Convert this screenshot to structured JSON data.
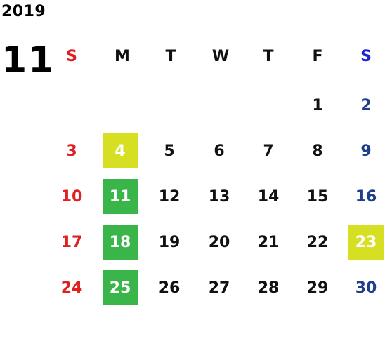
{
  "calendar": {
    "year": "2019",
    "month": "11",
    "weekdays": [
      "S",
      "M",
      "T",
      "W",
      "T",
      "F",
      "S"
    ],
    "weeks": [
      [
        "",
        "",
        "",
        "",
        "",
        "1",
        "2"
      ],
      [
        "3",
        "4",
        "5",
        "6",
        "7",
        "8",
        "9"
      ],
      [
        "10",
        "11",
        "12",
        "13",
        "14",
        "15",
        "16"
      ],
      [
        "17",
        "18",
        "19",
        "20",
        "21",
        "22",
        "23"
      ],
      [
        "24",
        "25",
        "26",
        "27",
        "28",
        "29",
        "30"
      ]
    ],
    "highlights": {
      "yellow": [
        "4",
        "23"
      ],
      "green": [
        "11",
        "18",
        "25"
      ]
    }
  },
  "colors": {
    "sunday": "#e02020",
    "saturday": "#1f3f8a",
    "saturday_header": "#1a23d6",
    "highlight_yellow": "#d6df22",
    "highlight_green": "#39b54a"
  }
}
